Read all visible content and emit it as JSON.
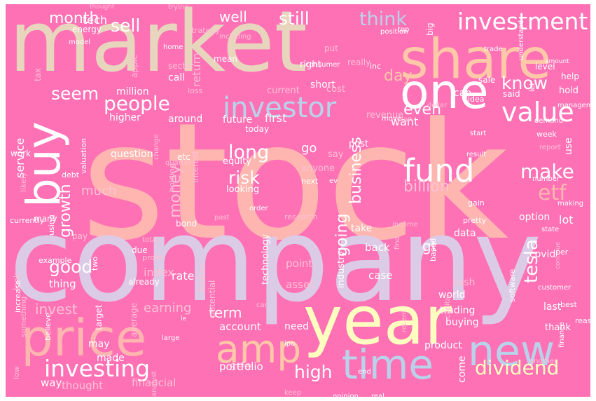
{
  "palette": {
    "background": "#ff71b5",
    "cream": "#f5e6c8",
    "tan": "#e8d5bd",
    "salmon": "#ffb6b0",
    "peach": "#ffc8a8",
    "lavender": "#dccbe6",
    "lightblue": "#b8d2ea",
    "yellow": "#ffffc0",
    "white": "#ffffff",
    "pinkpale": "#ffc0d6"
  },
  "words": [
    {
      "text": "stock",
      "size": 230,
      "color": "#ffb6b0"
    },
    {
      "text": "company",
      "size": 165,
      "color": "#dccbe6"
    },
    {
      "text": "market",
      "size": 120,
      "color": "#e8d5bd"
    },
    {
      "text": "year",
      "size": 95,
      "color": "#ffffc0"
    },
    {
      "text": "share",
      "size": 78,
      "color": "#ffc8a8"
    },
    {
      "text": "price",
      "size": 72,
      "color": "#ffb6b0"
    },
    {
      "text": "one",
      "size": 68,
      "color": "#ffffff"
    },
    {
      "text": "new",
      "size": 60,
      "color": "#b8d2ea"
    },
    {
      "text": "time",
      "size": 58,
      "color": "#b8d2ea"
    },
    {
      "text": "buy",
      "size": 66,
      "color": "#ffffff"
    },
    {
      "text": "amp",
      "size": 55,
      "color": "#ffc8a8"
    },
    {
      "text": "fund",
      "size": 45,
      "color": "#ffffff"
    },
    {
      "text": "investor",
      "size": 40,
      "color": "#b8d2ea"
    },
    {
      "text": "value",
      "size": 38,
      "color": "#ffffff"
    },
    {
      "text": "investment",
      "size": 33,
      "color": "#ffffff"
    },
    {
      "text": "investing",
      "size": 33,
      "color": "#ffffff"
    },
    {
      "text": "dividend",
      "size": 28,
      "color": "#ffffc0"
    },
    {
      "text": "people",
      "size": 28,
      "color": "#ffffff"
    },
    {
      "text": "etf",
      "size": 30,
      "color": "#ffb6b0"
    },
    {
      "text": "make",
      "size": 28,
      "color": "#ffffff"
    },
    {
      "text": "know",
      "size": 25,
      "color": "#ffffff"
    },
    {
      "text": "think",
      "size": 27,
      "color": "#b8d2ea"
    },
    {
      "text": "sell",
      "size": 25,
      "color": "#ffffff"
    },
    {
      "text": "still",
      "size": 25,
      "color": "#ffffff"
    },
    {
      "text": "seem",
      "size": 25,
      "color": "#ffffff"
    },
    {
      "text": "long",
      "size": 27,
      "color": "#ffffff"
    },
    {
      "text": "risk",
      "size": 25,
      "color": "#ffffff"
    },
    {
      "text": "good",
      "size": 25,
      "color": "#ffffff"
    },
    {
      "text": "high",
      "size": 25,
      "color": "#ffffff"
    },
    {
      "text": "billion",
      "size": 22,
      "color": "#ffc0d6"
    },
    {
      "text": "business",
      "size": 22,
      "color": "#ffffff"
    },
    {
      "text": "going",
      "size": 22,
      "color": "#ffffff"
    },
    {
      "text": "tesla",
      "size": 26,
      "color": "#ffffff"
    },
    {
      "text": "growth",
      "size": 22,
      "color": "#ffffff"
    },
    {
      "text": "money",
      "size": 22,
      "color": "#ffc0d6"
    },
    {
      "text": "month",
      "size": 22,
      "color": "#ffffff"
    },
    {
      "text": "well",
      "size": 20,
      "color": "#ffffff"
    },
    {
      "text": "day",
      "size": 22,
      "color": "#ffc8a8"
    },
    {
      "text": "even",
      "size": 22,
      "color": "#ffffff"
    },
    {
      "text": "invest",
      "size": 20,
      "color": "#ffc0d6"
    },
    {
      "text": "earning",
      "size": 18,
      "color": "#ffc0d6"
    },
    {
      "text": "term",
      "size": 20,
      "color": "#ffffff"
    },
    {
      "text": "see",
      "size": 18,
      "color": "#ffc0d6"
    },
    {
      "text": "go",
      "size": 18,
      "color": "#ffffff"
    },
    {
      "text": "gt",
      "size": 20,
      "color": "#ffffff"
    },
    {
      "text": "much",
      "size": 18,
      "color": "#ffc0d6"
    },
    {
      "text": "service",
      "size": 16,
      "color": "#ffffff"
    },
    {
      "text": "tech",
      "size": 16,
      "color": "#ffffff"
    },
    {
      "text": "return",
      "size": 16,
      "color": "#ffc0d6"
    },
    {
      "text": "want",
      "size": 16,
      "color": "#ffffff"
    },
    {
      "text": "first",
      "size": 16,
      "color": "#ffffff"
    },
    {
      "text": "future",
      "size": 14,
      "color": "#ffffff"
    },
    {
      "text": "index",
      "size": 16,
      "color": "#ffc0d6"
    },
    {
      "text": "rate",
      "size": 16,
      "color": "#ffffff"
    },
    {
      "text": "thing",
      "size": 15,
      "color": "#ffffff"
    },
    {
      "text": "account",
      "size": 15,
      "color": "#ffffff"
    },
    {
      "text": "portfolio",
      "size": 15,
      "color": "#ffffff"
    },
    {
      "text": "financial",
      "size": 15,
      "color": "#ffc0d6"
    },
    {
      "text": "thought",
      "size": 15,
      "color": "#ffc0d6"
    },
    {
      "text": "way",
      "size": 15,
      "color": "#ffffff"
    },
    {
      "text": "made",
      "size": 14,
      "color": "#ffffff"
    },
    {
      "text": "may",
      "size": 14,
      "color": "#ffffff"
    },
    {
      "text": "take",
      "size": 14,
      "color": "#ffffff"
    },
    {
      "text": "back",
      "size": 15,
      "color": "#ffffff"
    },
    {
      "text": "point",
      "size": 15,
      "color": "#ffc0d6"
    },
    {
      "text": "asset",
      "size": 15,
      "color": "#ffc0d6"
    },
    {
      "text": "case",
      "size": 15,
      "color": "#ffffff"
    },
    {
      "text": "need",
      "size": 14,
      "color": "#ffffff"
    },
    {
      "text": "world",
      "size": 14,
      "color": "#ffffff"
    },
    {
      "text": "trading",
      "size": 14,
      "color": "#ffffff"
    },
    {
      "text": "buying",
      "size": 14,
      "color": "#ffffff"
    },
    {
      "text": "product",
      "size": 14,
      "color": "#ffffff"
    },
    {
      "text": "come",
      "size": 14,
      "color": "#ffffff"
    },
    {
      "text": "cash",
      "size": 14,
      "color": "#ffc0d6"
    },
    {
      "text": "option",
      "size": 14,
      "color": "#ffffff"
    },
    {
      "text": "data",
      "size": 14,
      "color": "#ffffff"
    },
    {
      "text": "lot",
      "size": 16,
      "color": "#ffffff"
    },
    {
      "text": "last",
      "size": 14,
      "color": "#ffffff"
    },
    {
      "text": "thank",
      "size": 13,
      "color": "#ffffff"
    },
    {
      "text": "covid",
      "size": 14,
      "color": "#ffffff"
    },
    {
      "text": "hold",
      "size": 13,
      "color": "#ffffff"
    },
    {
      "text": "help",
      "size": 12,
      "color": "#ffffff"
    },
    {
      "text": "level",
      "size": 12,
      "color": "#ffffff"
    },
    {
      "text": "cap",
      "size": 14,
      "color": "#ffffff"
    },
    {
      "text": "sale",
      "size": 12,
      "color": "#ffffff"
    },
    {
      "text": "said",
      "size": 12,
      "color": "#ffffff"
    },
    {
      "text": "revenue",
      "size": 13,
      "color": "#ffc0d6"
    },
    {
      "text": "cost",
      "size": 13,
      "color": "#ffc0d6"
    },
    {
      "text": "short",
      "size": 14,
      "color": "#ffffff"
    },
    {
      "text": "current",
      "size": 13,
      "color": "#ffc0d6"
    },
    {
      "text": "right",
      "size": 13,
      "color": "#ffffff"
    },
    {
      "text": "put",
      "size": 12,
      "color": "#ffc0d6"
    },
    {
      "text": "mean",
      "size": 12,
      "color": "#ffffff"
    },
    {
      "text": "call",
      "size": 14,
      "color": "#ffffff"
    },
    {
      "text": "million",
      "size": 14,
      "color": "#ffffff"
    },
    {
      "text": "higher",
      "size": 14,
      "color": "#ffffff"
    },
    {
      "text": "around",
      "size": 14,
      "color": "#ffffff"
    },
    {
      "text": "question",
      "size": 14,
      "color": "#ffffff"
    },
    {
      "text": "etc",
      "size": 12,
      "color": "#ffffff"
    },
    {
      "text": "equity",
      "size": 13,
      "color": "#ffffff"
    },
    {
      "text": "today",
      "size": 12,
      "color": "#ffffff"
    },
    {
      "text": "looking",
      "size": 13,
      "color": "#ffffff"
    },
    {
      "text": "anyone",
      "size": 13,
      "color": "#ffc0d6"
    },
    {
      "text": "next",
      "size": 11,
      "color": "#ffffff"
    },
    {
      "text": "ev",
      "size": 10,
      "color": "#ffffff"
    },
    {
      "text": "post",
      "size": 13,
      "color": "#ffffff"
    },
    {
      "text": "say",
      "size": 13,
      "color": "#ffc0d6"
    },
    {
      "text": "better",
      "size": 13,
      "color": "#ffc0d6"
    },
    {
      "text": "technology",
      "size": 13,
      "color": "#ffffff"
    },
    {
      "text": "industry",
      "size": 13,
      "color": "#ffffff"
    },
    {
      "text": "potential",
      "size": 12,
      "color": "#ffc0d6"
    },
    {
      "text": "average",
      "size": 12,
      "color": "#ffc0d6"
    },
    {
      "text": "target",
      "size": 12,
      "color": "#ffffff"
    },
    {
      "text": "interest",
      "size": 12,
      "color": "#ffc0d6"
    },
    {
      "text": "holding",
      "size": 11,
      "color": "#ffc0d6"
    },
    {
      "text": "valuation",
      "size": 11,
      "color": "#ffffff"
    },
    {
      "text": "work",
      "size": 12,
      "color": "#ffffff"
    },
    {
      "text": "debt",
      "size": 11,
      "color": "#ffffff"
    },
    {
      "text": "change",
      "size": 10,
      "color": "#ffc0d6"
    },
    {
      "text": "bond",
      "size": 12,
      "color": "#ffffff"
    },
    {
      "text": "total",
      "size": 10,
      "color": "#ffc0d6"
    },
    {
      "text": "pay",
      "size": 12,
      "color": "#ffc0d6"
    },
    {
      "text": "many",
      "size": 12,
      "color": "#ffffff"
    },
    {
      "text": "currently",
      "size": 11,
      "color": "#ffffff"
    },
    {
      "text": "likely",
      "size": 11,
      "color": "#ffc0d6"
    },
    {
      "text": "due",
      "size": 12,
      "color": "#ffffff"
    },
    {
      "text": "profit",
      "size": 11,
      "color": "#ffc0d6"
    },
    {
      "text": "two",
      "size": 11,
      "color": "#ffffff"
    },
    {
      "text": "example",
      "size": 11,
      "color": "#ffffff"
    },
    {
      "text": "already",
      "size": 12,
      "color": "#ffffff"
    },
    {
      "text": "look",
      "size": 12,
      "color": "#ffc0d6"
    },
    {
      "text": "increase",
      "size": 11,
      "color": "#ffffff"
    },
    {
      "text": "something",
      "size": 11,
      "color": "#ffc0d6"
    },
    {
      "text": "believe",
      "size": 11,
      "color": "#ffffff"
    },
    {
      "text": "low",
      "size": 11,
      "color": "#ffc0d6"
    },
    {
      "text": "large",
      "size": 10,
      "color": "#ffffff"
    },
    {
      "text": "le",
      "size": 9,
      "color": "#ffffff"
    },
    {
      "text": "car",
      "size": 10,
      "color": "#ffc0d6"
    },
    {
      "text": "ipo",
      "size": 10,
      "color": "#ffffff"
    },
    {
      "text": "recent",
      "size": 10,
      "color": "#ffc0d6"
    },
    {
      "text": "capital",
      "size": 10,
      "color": "#ffc0d6"
    },
    {
      "text": "based",
      "size": 11,
      "color": "#ffffff"
    },
    {
      "text": "software",
      "size": 11,
      "color": "#ffffff"
    },
    {
      "text": "customer",
      "size": 10,
      "color": "#ffffff"
    },
    {
      "text": "best",
      "size": 11,
      "color": "#ffffff"
    },
    {
      "text": "reason",
      "size": 11,
      "color": "#ffffff"
    },
    {
      "text": "finance",
      "size": 10,
      "color": "#ffffff"
    },
    {
      "text": "another",
      "size": 10,
      "color": "#ffc0d6"
    },
    {
      "text": "end",
      "size": 10,
      "color": "#ffffff"
    },
    {
      "text": "keep",
      "size": 10,
      "color": "#ffc0d6"
    },
    {
      "text": "opinion",
      "size": 10,
      "color": "#ffffff"
    },
    {
      "text": "real",
      "size": 10,
      "color": "#ffffff"
    },
    {
      "text": "continue",
      "size": 9,
      "color": "#ffc0d6"
    },
    {
      "text": "per",
      "size": 11,
      "color": "#ffffff"
    },
    {
      "text": "state",
      "size": 10,
      "color": "#ffffff"
    },
    {
      "text": "making",
      "size": 10,
      "color": "#ffffff"
    },
    {
      "text": "gain",
      "size": 11,
      "color": "#ffffff"
    },
    {
      "text": "pretty",
      "size": 11,
      "color": "#ffffff"
    },
    {
      "text": "find",
      "size": 10,
      "color": "#ffc0d6"
    },
    {
      "text": "income",
      "size": 10,
      "color": "#ffc0d6"
    },
    {
      "text": "past",
      "size": 10,
      "color": "#ffc0d6"
    },
    {
      "text": "order",
      "size": 10,
      "color": "#ffffff"
    },
    {
      "text": "research",
      "size": 11,
      "color": "#ffc0d6"
    },
    {
      "text": "number",
      "size": 10,
      "color": "#ffffff"
    },
    {
      "text": "use",
      "size": 14,
      "color": "#ffffff"
    },
    {
      "text": "report",
      "size": 10,
      "color": "#ffc0d6"
    },
    {
      "text": "week",
      "size": 11,
      "color": "#ffffff"
    },
    {
      "text": "demand",
      "size": 10,
      "color": "#ffffff"
    },
    {
      "text": "start",
      "size": 10,
      "color": "#ffffff"
    },
    {
      "text": "result",
      "size": 10,
      "color": "#ffffff"
    },
    {
      "text": "dollar",
      "size": 10,
      "color": "#ffc0d6"
    },
    {
      "text": "move",
      "size": 10,
      "color": "#ffffff"
    },
    {
      "text": "plan",
      "size": 10,
      "color": "#ffc0d6"
    },
    {
      "text": "idea",
      "size": 11,
      "color": "#ffffff"
    },
    {
      "text": "management",
      "size": 10,
      "color": "#ffffff"
    },
    {
      "text": "analyst",
      "size": 10,
      "color": "#ffc0d6"
    },
    {
      "text": "trying",
      "size": 10,
      "color": "#ffc0d6"
    },
    {
      "text": "thought",
      "size": 9,
      "color": "#ffc0d6"
    },
    {
      "text": "energy",
      "size": 12,
      "color": "#ffffff"
    },
    {
      "text": "model",
      "size": 10,
      "color": "#ffffff"
    },
    {
      "text": "home",
      "size": 10,
      "color": "#ffffff"
    },
    {
      "text": "sector",
      "size": 12,
      "color": "#ffc0d6"
    },
    {
      "text": "apple",
      "size": 12,
      "color": "#ffc0d6"
    },
    {
      "text": "tax",
      "size": 12,
      "color": "#ffc0d6"
    },
    {
      "text": "strategy",
      "size": 11,
      "color": "#ffc0d6"
    },
    {
      "text": "including",
      "size": 10,
      "color": "#ffc0d6"
    },
    {
      "text": "loss",
      "size": 11,
      "color": "#ffc0d6"
    },
    {
      "text": "consumer",
      "size": 10,
      "color": "#ffffff"
    },
    {
      "text": "really",
      "size": 12,
      "color": "#ffc0d6"
    },
    {
      "text": "inc",
      "size": 11,
      "color": "#ffffff"
    },
    {
      "text": "position",
      "size": 10,
      "color": "#ffffff"
    },
    {
      "text": "top",
      "size": 10,
      "color": "#ffffff"
    },
    {
      "text": "big",
      "size": 12,
      "color": "#ffffff"
    },
    {
      "text": "trade",
      "size": 10,
      "color": "#ffffff"
    },
    {
      "text": "understand",
      "size": 10,
      "color": "#ffffff"
    },
    {
      "text": "amount",
      "size": 9,
      "color": "#ffffff"
    },
    {
      "text": "let",
      "size": 10,
      "color": "#ffffff"
    },
    {
      "text": "quarter",
      "size": 10,
      "color": "#ffc0d6"
    },
    {
      "text": "using",
      "size": 11,
      "color": "#ffffff"
    },
    {
      "text": "worth",
      "size": 10,
      "color": "#ffc0d6"
    }
  ]
}
